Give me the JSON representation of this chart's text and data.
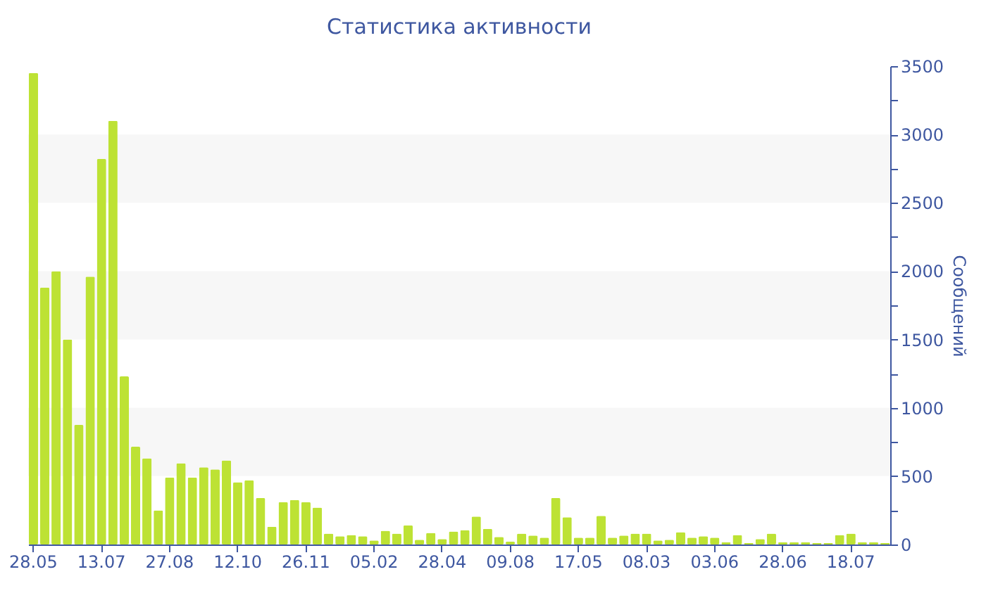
{
  "chart_data": {
    "type": "bar",
    "title": "Статистика активности",
    "ylabel": "Сообщений",
    "categories": [
      "28.05",
      null,
      null,
      null,
      null,
      null,
      "13.07",
      null,
      null,
      null,
      null,
      null,
      "27.08",
      null,
      null,
      null,
      null,
      null,
      "12.10",
      null,
      null,
      null,
      null,
      null,
      "26.11",
      null,
      null,
      null,
      null,
      null,
      "05.02",
      null,
      null,
      null,
      null,
      null,
      "28.04",
      null,
      null,
      null,
      null,
      null,
      "09.08",
      null,
      null,
      null,
      null,
      null,
      "17.05",
      null,
      null,
      null,
      null,
      null,
      "08.03",
      null,
      null,
      null,
      null,
      null,
      "03.06",
      null,
      null,
      null,
      null,
      null,
      "28.06",
      null,
      null,
      null,
      null,
      null,
      "18.07",
      null,
      null,
      null
    ],
    "values": [
      3450,
      1880,
      2000,
      1500,
      875,
      1960,
      2820,
      3100,
      1230,
      715,
      630,
      250,
      490,
      595,
      490,
      565,
      550,
      615,
      455,
      470,
      340,
      130,
      310,
      325,
      310,
      270,
      80,
      60,
      70,
      60,
      30,
      100,
      80,
      140,
      35,
      85,
      40,
      95,
      105,
      205,
      115,
      55,
      20,
      80,
      65,
      50,
      340,
      200,
      50,
      50,
      210,
      50,
      65,
      80,
      80,
      30,
      35,
      90,
      50,
      60,
      50,
      15,
      70,
      10,
      40,
      80,
      15,
      15,
      15,
      10,
      10,
      70,
      80,
      15,
      15,
      10
    ],
    "color": "#bde234",
    "ylim": [
      0,
      3500
    ],
    "yticks": [
      0,
      {
        "value": 250,
        "label": null
      },
      500,
      {
        "value": 750,
        "label": null
      },
      1000,
      {
        "value": 1250,
        "label": null
      },
      1500,
      {
        "value": 1750,
        "label": null
      },
      2000,
      {
        "value": 2250,
        "label": null
      },
      2500,
      {
        "value": 2750,
        "label": null
      },
      3000,
      {
        "value": 3250,
        "label": null
      },
      3500
    ],
    "bands": [
      {
        "axis": "y",
        "from": 500,
        "to": 1000,
        "color": "#f7f7f7"
      },
      {
        "axis": "y",
        "from": 1500,
        "to": 2000,
        "color": "#f7f7f7"
      },
      {
        "axis": "y",
        "from": 2500,
        "to": 3000,
        "color": "#f7f7f7"
      }
    ]
  }
}
